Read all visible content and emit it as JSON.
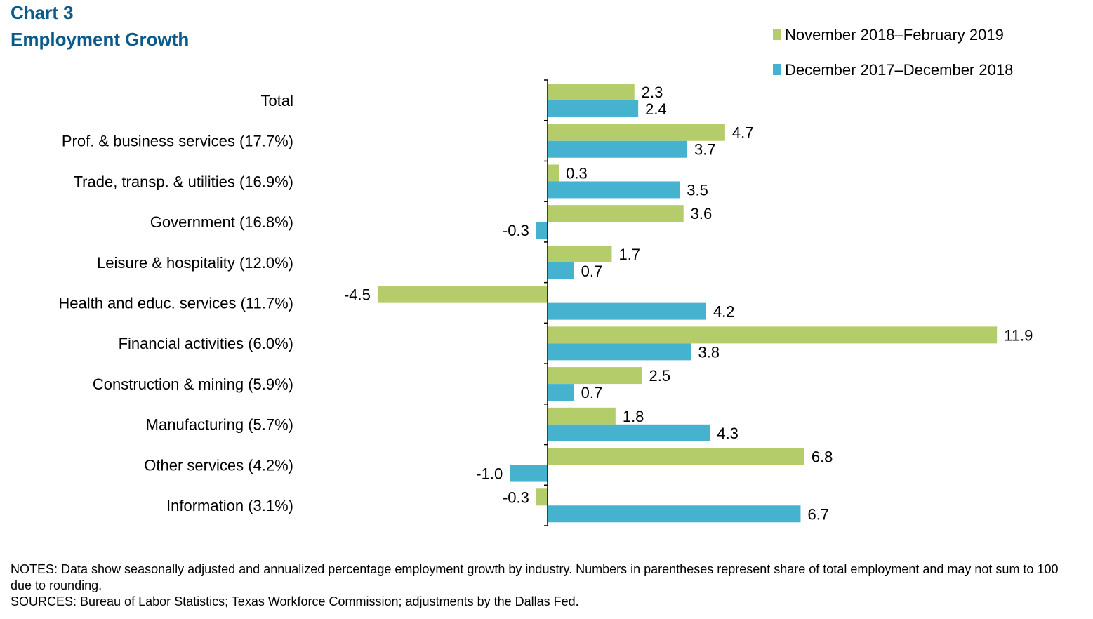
{
  "header": {
    "chart_number": "Chart 3",
    "title": "Employment Growth"
  },
  "colors": {
    "title": "#0b5a8a",
    "series_green": "#b5cc6a",
    "series_blue": "#45b3cf"
  },
  "chart_data": {
    "type": "bar",
    "orientation": "horizontal",
    "title": "Employment Growth",
    "xlabel": "",
    "ylabel": "",
    "legend_position": "top-right",
    "categories": [
      "Total",
      "Prof. & business services (17.7%)",
      "Trade, transp. & utilities (16.9%)",
      "Government (16.8%)",
      "Leisure & hospitality (12.0%)",
      "Health and educ. services (11.7%)",
      "Financial activities (6.0%)",
      "Construction & mining (5.9%)",
      "Manufacturing (5.7%)",
      "Other services (4.2%)",
      "Information (3.1%)"
    ],
    "series": [
      {
        "name": "November 2018–February 2019",
        "color": "#b5cc6a",
        "values": [
          2.3,
          4.7,
          0.3,
          3.6,
          1.7,
          -4.5,
          11.9,
          2.5,
          1.8,
          6.8,
          -0.3
        ],
        "labels": [
          "2.3",
          "4.7",
          "0.3",
          "3.6",
          "1.7",
          "-4.5",
          "11.9",
          "2.5",
          "1.8",
          "6.8",
          "-0.3"
        ]
      },
      {
        "name": "December 2017–December 2018",
        "color": "#45b3cf",
        "values": [
          2.4,
          3.7,
          3.5,
          -0.3,
          0.7,
          4.2,
          3.8,
          0.7,
          4.3,
          -1.0,
          6.7
        ],
        "labels": [
          "2.4",
          "3.7",
          "3.5",
          "-0.3",
          "0.7",
          "4.2",
          "3.8",
          "0.7",
          "4.3",
          "-1.0",
          "6.7"
        ]
      }
    ]
  },
  "notes": {
    "line1": "NOTES: Data show seasonally adjusted and annualized percentage employment growth by industry. Numbers in parentheses represent share of total employment and may not sum to 100 due to rounding.",
    "line2": "SOURCES: Bureau of Labor Statistics; Texas Workforce Commission; adjustments by the Dallas Fed."
  }
}
